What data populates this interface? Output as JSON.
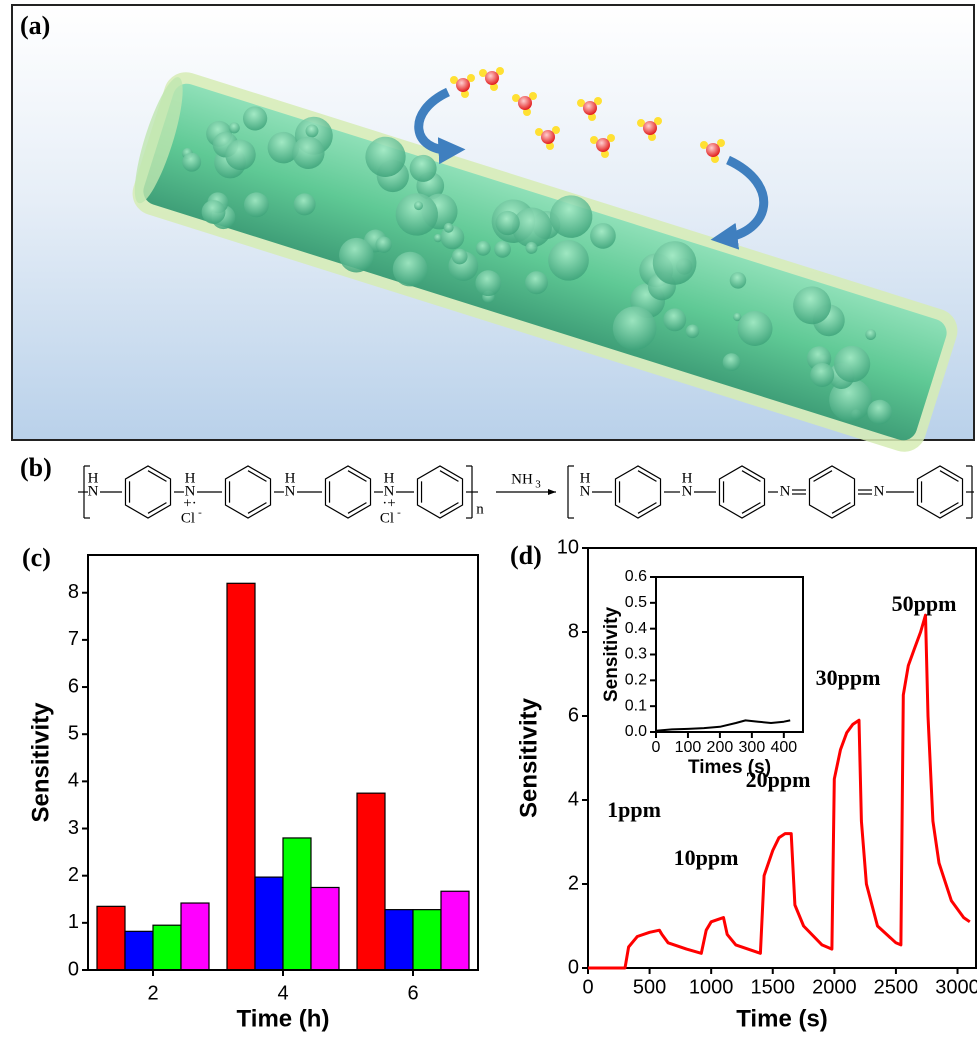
{
  "figure": {
    "panel_labels": [
      "(a)",
      "(b)"
    ],
    "scheme": {
      "H": "H",
      "N": "N",
      "Cl": "Cl",
      "minus": "-",
      "plus_dot": "+·",
      "dot_plus": "·+",
      "reagent": "NH",
      "reagent_sub": "3",
      "n": "n"
    }
  },
  "chart_data": [
    {
      "type": "bar",
      "panel": "(c)",
      "xlabel": "Time (h)",
      "ylabel": "Sensitivity",
      "categories": [
        "2",
        "4",
        "6"
      ],
      "series": [
        {
          "color": "#ff0000",
          "values": [
            1.35,
            8.2,
            3.75
          ]
        },
        {
          "color": "#0000ff",
          "values": [
            0.82,
            1.97,
            1.28
          ]
        },
        {
          "color": "#00ff00",
          "values": [
            0.95,
            2.8,
            1.28
          ]
        },
        {
          "color": "#ff00ff",
          "values": [
            1.42,
            1.75,
            1.67
          ]
        }
      ],
      "ylim": [
        0,
        8.8
      ],
      "yticks": [
        0,
        1,
        2,
        3,
        4,
        5,
        6,
        7,
        8
      ]
    },
    {
      "type": "line",
      "panel": "(d)",
      "xlabel": "Time (s)",
      "ylabel": "Sensitivity",
      "annotations": [
        "1ppm",
        "10ppm",
        "20ppm",
        "30ppm",
        "50ppm"
      ],
      "series": [
        {
          "color": "#ff0000",
          "x": [
            0,
            300,
            330,
            400,
            500,
            580,
            600,
            650,
            800,
            920,
            960,
            1000,
            1050,
            1100,
            1130,
            1200,
            1400,
            1430,
            1500,
            1550,
            1600,
            1650,
            1680,
            1750,
            1900,
            1980,
            2000,
            2050,
            2100,
            2150,
            2200,
            2220,
            2260,
            2350,
            2500,
            2540,
            2560,
            2600,
            2650,
            2700,
            2740,
            2760,
            2800,
            2850,
            2950,
            3050,
            3100
          ],
          "values": [
            0,
            0,
            0.5,
            0.75,
            0.85,
            0.9,
            0.8,
            0.6,
            0.45,
            0.35,
            0.9,
            1.1,
            1.15,
            1.2,
            0.8,
            0.55,
            0.35,
            2.2,
            2.8,
            3.1,
            3.2,
            3.2,
            1.5,
            1.0,
            0.55,
            0.45,
            4.5,
            5.2,
            5.6,
            5.8,
            5.9,
            3.5,
            2.0,
            1.0,
            0.6,
            0.55,
            6.5,
            7.2,
            7.6,
            8.0,
            8.4,
            6.0,
            3.5,
            2.5,
            1.6,
            1.2,
            1.1
          ]
        }
      ],
      "xlim": [
        0,
        3150
      ],
      "xticks": [
        0,
        500,
        1000,
        1500,
        2000,
        2500,
        3000
      ],
      "ylim": [
        0,
        10
      ],
      "yticks": [
        0,
        2,
        4,
        6,
        8,
        10
      ]
    },
    {
      "type": "line",
      "xlabel": "Times (s)",
      "ylabel": "Sensitivity",
      "series": [
        {
          "color": "#000000",
          "x": [
            0,
            50,
            100,
            150,
            200,
            250,
            280,
            320,
            360,
            400,
            420
          ],
          "values": [
            0.005,
            0.01,
            0.012,
            0.015,
            0.02,
            0.035,
            0.045,
            0.04,
            0.035,
            0.04,
            0.045
          ]
        }
      ],
      "xlim": [
        0,
        460
      ],
      "xticks": [
        0,
        100,
        200,
        300,
        400
      ],
      "ylim": [
        0,
        0.6
      ],
      "yticks": [
        {
          "value": 0,
          "label": "0.0"
        },
        0.1,
        0.2,
        0.3,
        0.4,
        0.5,
        0.6
      ]
    }
  ]
}
